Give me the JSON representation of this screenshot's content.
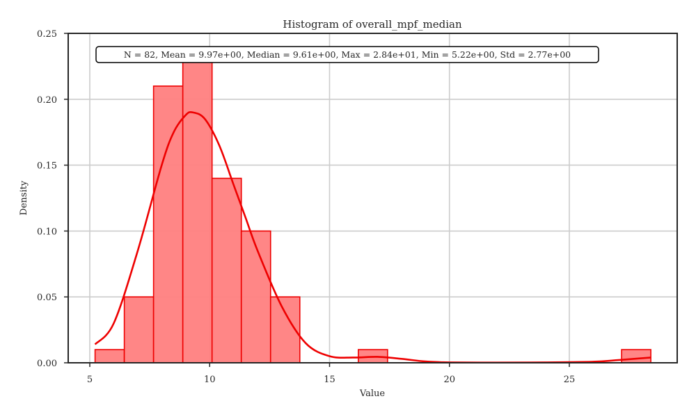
{
  "chart_data": {
    "type": "histogram",
    "title": "Histogram of overall_mpf_median",
    "xlabel": "Value",
    "ylabel": "Density",
    "xlim": [
      4.1,
      29.5
    ],
    "ylim": [
      0,
      0.25
    ],
    "x_ticks": [
      5,
      10,
      15,
      20,
      25
    ],
    "y_ticks": [
      0.0,
      0.05,
      0.1,
      0.15,
      0.2,
      0.25
    ],
    "y_tick_labels": [
      "0.00",
      "0.05",
      "0.10",
      "0.15",
      "0.20",
      "0.25"
    ],
    "grid": true,
    "bins": [
      {
        "x0": 5.22,
        "x1": 6.44,
        "density": 0.01
      },
      {
        "x0": 6.44,
        "x1": 7.66,
        "density": 0.05
      },
      {
        "x0": 7.66,
        "x1": 8.88,
        "density": 0.21
      },
      {
        "x0": 8.88,
        "x1": 10.1,
        "density": 0.23
      },
      {
        "x0": 10.1,
        "x1": 11.32,
        "density": 0.14
      },
      {
        "x0": 11.32,
        "x1": 12.54,
        "density": 0.1
      },
      {
        "x0": 12.54,
        "x1": 13.76,
        "density": 0.05
      },
      {
        "x0": 13.76,
        "x1": 14.98,
        "density": 0.0
      },
      {
        "x0": 14.98,
        "x1": 16.2,
        "density": 0.0
      },
      {
        "x0": 16.2,
        "x1": 17.42,
        "density": 0.01
      },
      {
        "x0": 17.42,
        "x1": 18.64,
        "density": 0.0
      },
      {
        "x0": 18.64,
        "x1": 19.86,
        "density": 0.0
      },
      {
        "x0": 19.86,
        "x1": 21.08,
        "density": 0.0
      },
      {
        "x0": 21.08,
        "x1": 22.3,
        "density": 0.0
      },
      {
        "x0": 22.3,
        "x1": 23.52,
        "density": 0.0
      },
      {
        "x0": 23.52,
        "x1": 24.74,
        "density": 0.0
      },
      {
        "x0": 24.74,
        "x1": 25.96,
        "density": 0.0
      },
      {
        "x0": 25.96,
        "x1": 27.18,
        "density": 0.0
      },
      {
        "x0": 27.18,
        "x1": 28.4,
        "density": 0.01
      }
    ],
    "kde": {
      "x": [
        5.22,
        6.0,
        7.0,
        8.0,
        8.5,
        9.0,
        9.3,
        9.8,
        10.4,
        11.0,
        11.5,
        12.0,
        13.0,
        14.0,
        15.0,
        16.0,
        17.0,
        18.0,
        19.0,
        20.0,
        22.0,
        24.0,
        26.0,
        27.0,
        28.4
      ],
      "y": [
        0.014,
        0.03,
        0.085,
        0.15,
        0.175,
        0.188,
        0.19,
        0.185,
        0.165,
        0.135,
        0.11,
        0.085,
        0.043,
        0.015,
        0.005,
        0.004,
        0.0045,
        0.003,
        0.001,
        0.0003,
        0.0002,
        0.0003,
        0.0008,
        0.002,
        0.004
      ]
    },
    "colors": {
      "bar_fill": "#ff7f7f",
      "bar_edge": "#ee0000",
      "kde_line": "#ee0000",
      "grid": "#cccccc",
      "axes": "#262626"
    },
    "stats_annotation": "N = 82, Mean = 9.97e+00, Median = 9.61e+00, Max = 2.84e+01, Min = 5.22e+00, Std = 2.77e+00"
  }
}
